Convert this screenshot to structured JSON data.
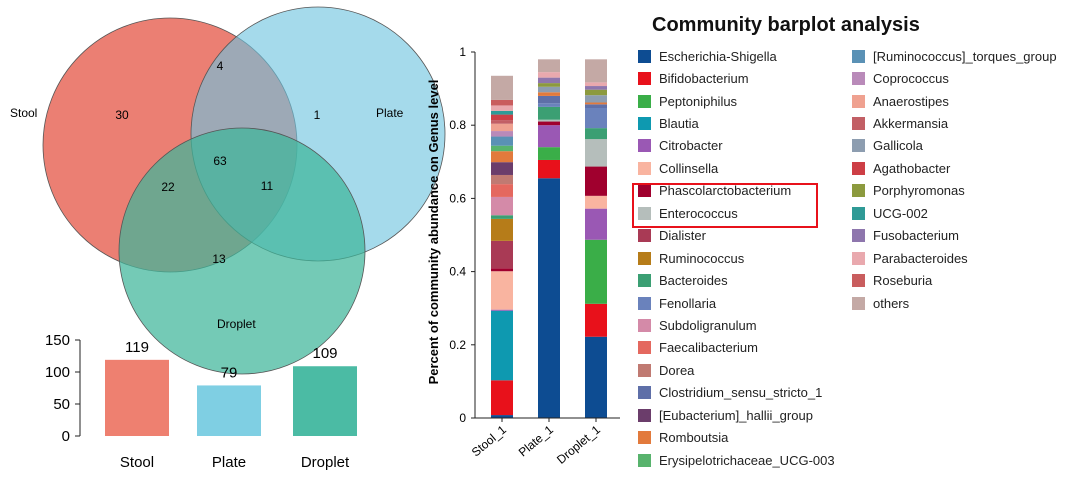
{
  "venn": {
    "sets": [
      {
        "name": "Stool",
        "color": "#e8685a"
      },
      {
        "name": "Plate",
        "color": "#6ec4de"
      },
      {
        "name": "Droplet",
        "color": "#3fb59a"
      }
    ],
    "regions": {
      "stool_only": "30",
      "stool_plate": "4",
      "plate_only": "1",
      "all": "63",
      "stool_droplet": "22",
      "plate_droplet": "11",
      "droplet_only": "13"
    }
  },
  "chart_data": [
    {
      "type": "bar",
      "categories": [
        "Stool",
        "Plate",
        "Droplet"
      ],
      "values": [
        119,
        79,
        109
      ],
      "colors": [
        "#ee8070",
        "#7fcfe3",
        "#4bbba4"
      ],
      "ylim": [
        0,
        150
      ],
      "yticks": [
        0,
        50,
        100,
        150
      ]
    },
    {
      "type": "bar",
      "stacked": true,
      "title": "Community barplot analysis",
      "ylabel": "Percent of community abundance on Genus level",
      "categories": [
        "Stool_1",
        "Plate_1",
        "Droplet_1"
      ],
      "ylim": [
        0,
        1
      ],
      "yticks": [
        "0",
        "0.2",
        "0.4",
        "0.6",
        "0.8",
        "1"
      ],
      "series": [
        {
          "name": "Escherichia-Shigella",
          "color": "#0d4c92",
          "values": [
            0.008,
            0.655,
            0.222
          ]
        },
        {
          "name": "Bifidobacterium",
          "color": "#e8111b",
          "values": [
            0.095,
            0.05,
            0.09
          ]
        },
        {
          "name": "Peptoniphilus",
          "color": "#3aae48",
          "values": [
            0.0,
            0.035,
            0.175
          ]
        },
        {
          "name": "Blautia",
          "color": "#0e99b0",
          "values": [
            0.19,
            0.0,
            0.0
          ]
        },
        {
          "name": "Citrobacter",
          "color": "#9a58b4",
          "values": [
            0.003,
            0.06,
            0.085
          ]
        },
        {
          "name": "Collinsella",
          "color": "#f9b4a0",
          "values": [
            0.105,
            0.0,
            0.035
          ]
        },
        {
          "name": "Phascolarctobacterium",
          "color": "#a0002e",
          "values": [
            0.008,
            0.01,
            0.08
          ]
        },
        {
          "name": "Enterococcus",
          "color": "#b5bebb",
          "values": [
            0.0,
            0.005,
            0.075
          ]
        },
        {
          "name": "Dialister",
          "color": "#a93a55",
          "values": [
            0.075,
            0.0,
            0.0
          ]
        },
        {
          "name": "Ruminococcus",
          "color": "#b67c19",
          "values": [
            0.06,
            0.0,
            0.0
          ]
        },
        {
          "name": "Bacteroides",
          "color": "#3b9f73",
          "values": [
            0.01,
            0.035,
            0.03
          ]
        },
        {
          "name": "Fenollaria",
          "color": "#6a82bc",
          "values": [
            0.0,
            0.01,
            0.055
          ]
        },
        {
          "name": "Subdoligranulum",
          "color": "#d48aa8",
          "values": [
            0.05,
            0.0,
            0.0
          ]
        },
        {
          "name": "Faecalibacterium",
          "color": "#e4685f",
          "values": [
            0.035,
            0.0,
            0.0
          ]
        },
        {
          "name": "Dorea",
          "color": "#c07a72",
          "values": [
            0.025,
            0.0,
            0.0
          ]
        },
        {
          "name": "Clostridium_sensu_stricto_1",
          "color": "#5e6fa8",
          "values": [
            0.0,
            0.02,
            0.01
          ]
        },
        {
          "name": "[Eubacterium]_hallii_group",
          "color": "#6b3d6b",
          "values": [
            0.035,
            0.0,
            0.0
          ]
        },
        {
          "name": "Romboutsia",
          "color": "#e27a3c",
          "values": [
            0.03,
            0.01,
            0.005
          ]
        },
        {
          "name": "Erysipelotrichaceae_UCG-003",
          "color": "#58b36d",
          "values": [
            0.015,
            0.0,
            0.0
          ]
        },
        {
          "name": "[Ruminococcus]_torques_group",
          "color": "#5a91b5",
          "values": [
            0.025,
            0.0,
            0.0
          ]
        },
        {
          "name": "Coprococcus",
          "color": "#b98ab9",
          "values": [
            0.015,
            0.0,
            0.0
          ]
        },
        {
          "name": "Anaerostipes",
          "color": "#efa190",
          "values": [
            0.02,
            0.0,
            0.0
          ]
        },
        {
          "name": "Akkermansia",
          "color": "#c25f65",
          "values": [
            0.01,
            0.0,
            0.0
          ]
        },
        {
          "name": "Gallicola",
          "color": "#8d9db0",
          "values": [
            0.0,
            0.015,
            0.02
          ]
        },
        {
          "name": "Agathobacter",
          "color": "#cd3e45",
          "values": [
            0.015,
            0.0,
            0.0
          ]
        },
        {
          "name": "Porphyromonas",
          "color": "#8c9a3e",
          "values": [
            0.0,
            0.01,
            0.015
          ]
        },
        {
          "name": "UCG-002",
          "color": "#2f9a96",
          "values": [
            0.01,
            0.0,
            0.0
          ]
        },
        {
          "name": "Fusobacterium",
          "color": "#8e76ad",
          "values": [
            0.0,
            0.015,
            0.01
          ]
        },
        {
          "name": "Parabacteroides",
          "color": "#e9a9ae",
          "values": [
            0.015,
            0.015,
            0.01
          ]
        },
        {
          "name": "Roseburia",
          "color": "#c95d5e",
          "values": [
            0.015,
            0.0,
            0.0
          ]
        },
        {
          "name": "others",
          "color": "#c4a9a5",
          "values": [
            0.066,
            0.035,
            0.063
          ]
        }
      ]
    }
  ],
  "highlight": {
    "items": [
      "Phascolarctobacterium",
      "Enterococcus"
    ],
    "color": "#e8111b"
  }
}
